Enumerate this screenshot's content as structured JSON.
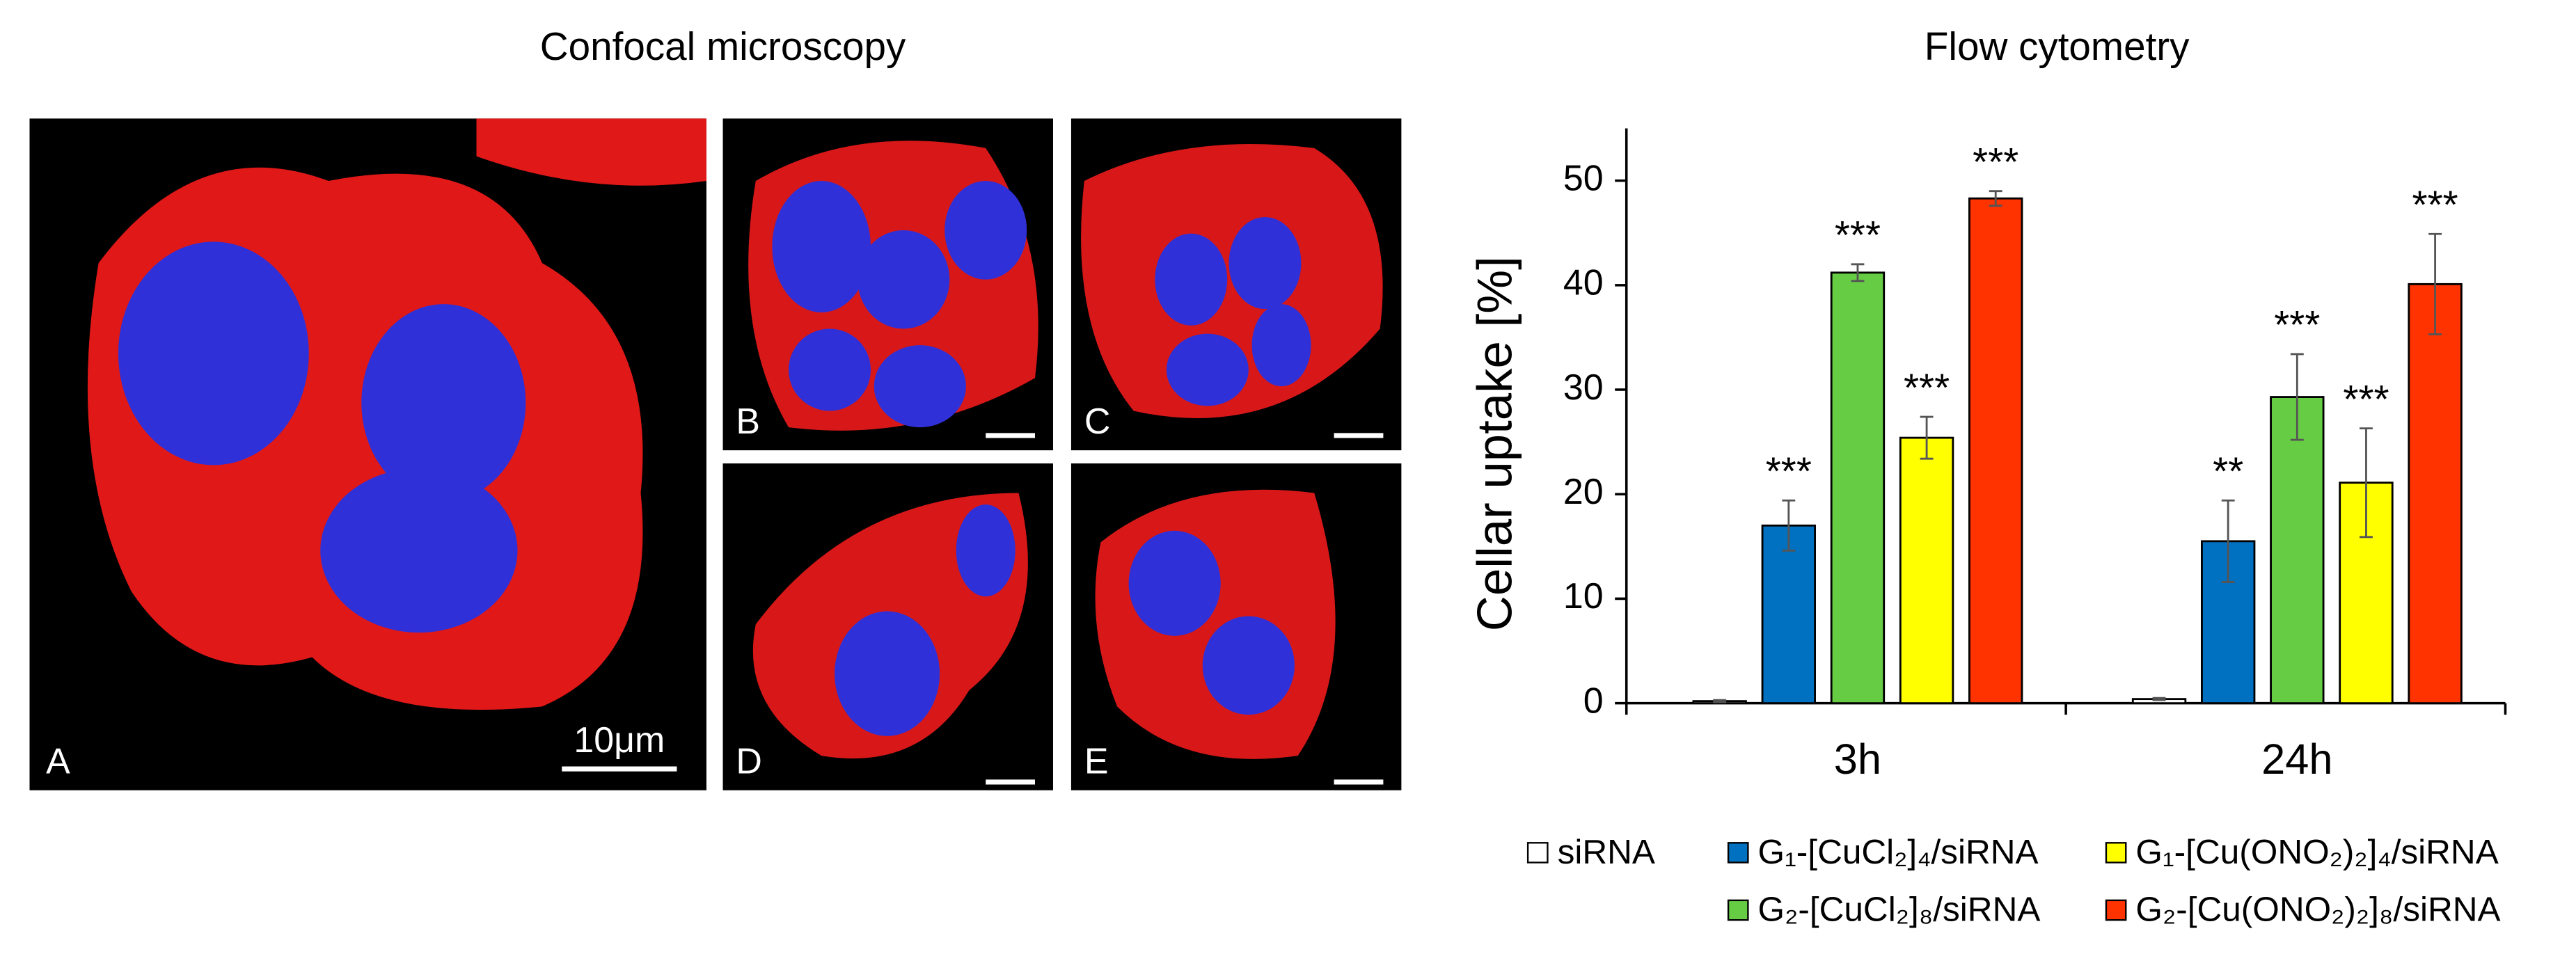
{
  "figure": {
    "title": "Confocal microscopy",
    "panels": [
      {
        "label": "A"
      },
      {
        "label": "B"
      },
      {
        "label": "C"
      },
      {
        "label": "D"
      },
      {
        "label": "E"
      }
    ],
    "scale_label": "10μm"
  },
  "chart_data": {
    "type": "bar",
    "title": "Flow cytometry",
    "y_label": "Cellar uptake [%]",
    "categories": [
      "3h",
      "24h"
    ],
    "series": [
      {
        "name": "siRNA",
        "color": "#ffffff",
        "values": [
          0.2,
          0.4
        ],
        "errors": [
          0.1,
          0.1
        ],
        "significance": [
          null,
          null
        ]
      },
      {
        "name": "G₁-[CuCl₂]₄/siRNA",
        "color": "#0070c0",
        "values": [
          17,
          15.5
        ],
        "errors": [
          2.4,
          3.9
        ],
        "significance": [
          "***",
          "**"
        ]
      },
      {
        "name": "G₂-[CuCl₂]₈/siRNA",
        "color": "#66cc44",
        "values": [
          41.2,
          29.3
        ],
        "errors": [
          0.8,
          4.1
        ],
        "significance": [
          "***",
          "***"
        ]
      },
      {
        "name": "G₁-[Cu(ONO₂)₂]₄/siRNA",
        "color": "#ffff00",
        "values": [
          25.4,
          21.1
        ],
        "errors": [
          2.0,
          5.2
        ],
        "significance": [
          "***",
          "***"
        ]
      },
      {
        "name": "G₂-[Cu(ONO₂)₂]₈/siRNA",
        "color": "#ff3300",
        "values": [
          48.3,
          40.1
        ],
        "errors": [
          0.7,
          4.8
        ],
        "significance": [
          "***",
          "***"
        ]
      }
    ],
    "ylim": [
      0,
      55
    ],
    "yticks": [
      0,
      10,
      20,
      30,
      40,
      50
    ],
    "grid": false
  }
}
